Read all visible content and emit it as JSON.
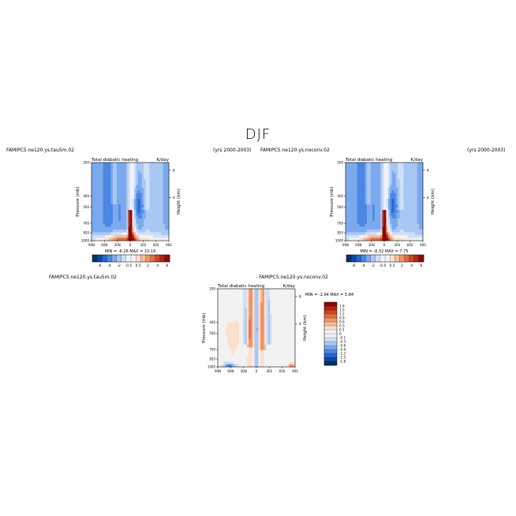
{
  "figure_title": "DJF",
  "colors": {
    "scale": [
      "#08306b",
      "#0b47a5",
      "#2166d1",
      "#4a87e3",
      "#7aa9ee",
      "#a8c8f4",
      "#cfe0f8",
      "#f2f2f2",
      "#fbe0cd",
      "#f7bd97",
      "#f19566",
      "#e46c40",
      "#cf4526",
      "#b52413",
      "#8a0a05"
    ]
  },
  "chart_data": [
    {
      "type": "heatmap",
      "case_label": "FAMIPC5.ne120.ys.tau5m.02",
      "period_label": "(yrs 2000-2003)",
      "variable_label": "Total diabatic heating",
      "units_label": "K/day",
      "ylabel": "Pressure (mb)",
      "y2label": "Height (km)",
      "x_ticks": [
        "90N",
        "60N",
        "30N",
        "0",
        "30S",
        "60S",
        "90S"
      ],
      "y_ticks": [
        "200",
        "400",
        "500",
        "700",
        "850",
        "1000"
      ],
      "y2_ticks": [
        "8",
        "4"
      ],
      "stats": "MIN = -6.26   MAX = 10.19",
      "colorbar_labels": [
        "-6",
        "-4",
        "-2",
        "-0.5",
        "0.5",
        "2",
        "4",
        "6"
      ],
      "ylim": [
        1000,
        200
      ]
    },
    {
      "type": "heatmap",
      "case_label": "FAMIPC5.ne120.ys.noconv.02",
      "period_label": "(yrs 2000-2003)",
      "variable_label": "Total diabatic heating",
      "units_label": "K/day",
      "ylabel": "Pressure (mb)",
      "y2label": "Height (km)",
      "x_ticks": [
        "90N",
        "60N",
        "30N",
        "0",
        "30S",
        "60S",
        "90S"
      ],
      "y_ticks": [
        "200",
        "400",
        "500",
        "700",
        "850",
        "1000"
      ],
      "y2_ticks": [
        "8",
        "4"
      ],
      "stats": "MIN = -8.32   MAX = 7.75",
      "colorbar_labels": [
        "-6",
        "-4",
        "-2",
        "-0.5",
        "0.5",
        "2",
        "4",
        "6"
      ],
      "ylim": [
        1000,
        200
      ]
    },
    {
      "type": "heatmap",
      "case_label": "FAMIPC5.ne120.ys.tau5m.02",
      "diff_label": "- FAMIPC5.ne120.ys.noconv.02",
      "variable_label": "Total diabatic heating",
      "units_label": "K/day",
      "ylabel": "Pressure (mb)",
      "y2label": "Height (km)",
      "x_ticks": [
        "90N",
        "60N",
        "30N",
        "0",
        "30S",
        "60S",
        "90S"
      ],
      "y_ticks": [
        "200",
        "400",
        "500",
        "700",
        "850",
        "1000"
      ],
      "y2_ticks": [
        "8",
        "4"
      ],
      "stats": "MIN = -2.94   MAX = 5.84",
      "colorbar_labels": [
        "1.8",
        "1.5",
        "1.2",
        "0.9",
        "0.6",
        "0.3",
        "0.1",
        "0",
        "-0.1",
        "-0.3",
        "-0.6",
        "-0.9",
        "-1.2",
        "-1.5",
        "-1.8"
      ],
      "ylim": [
        1000,
        200
      ]
    }
  ]
}
